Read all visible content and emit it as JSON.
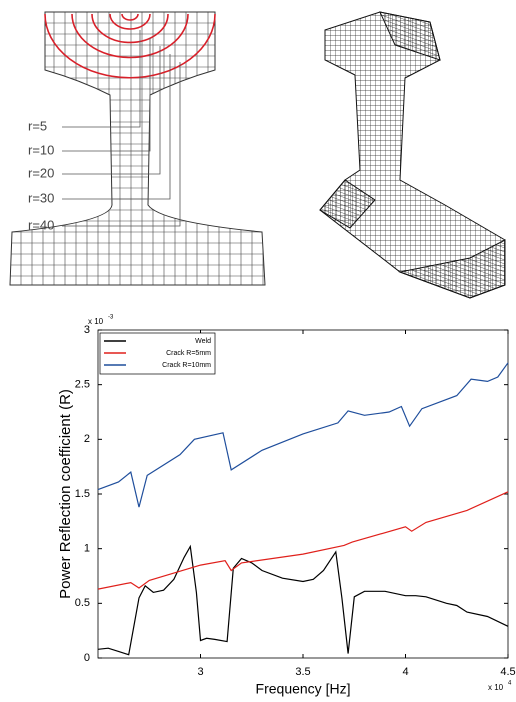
{
  "diagram": {
    "labels": [
      "r=5",
      "r=10",
      "r=20",
      "r=30",
      "r=40"
    ]
  },
  "chart_data": {
    "type": "line",
    "x_label": "Frequency [Hz]",
    "y_label": "Power Reflection coefficient (R)",
    "x_multiplier": "x 10",
    "x_exponent": "4",
    "y_multiplier": "x 10",
    "y_exponent": "-3",
    "xlim": [
      2.5,
      4.5
    ],
    "xticks": [
      3,
      3.5,
      4,
      4.5
    ],
    "ylim": [
      0,
      3
    ],
    "yticks": [
      0,
      0.5,
      1,
      1.5,
      2,
      2.5,
      3
    ],
    "legend": "top-left",
    "series": [
      {
        "name": "Weld",
        "color": "#000000",
        "x": [
          2.5,
          2.55,
          2.6,
          2.65,
          2.7,
          2.73,
          2.77,
          2.82,
          2.87,
          2.92,
          2.95,
          2.98,
          3.0,
          3.03,
          3.07,
          3.13,
          3.16,
          3.2,
          3.25,
          3.3,
          3.4,
          3.5,
          3.55,
          3.6,
          3.66,
          3.69,
          3.72,
          3.75,
          3.8,
          3.9,
          4.0,
          4.05,
          4.1,
          4.2,
          4.25,
          4.3,
          4.4,
          4.5
        ],
        "values": [
          0.08,
          0.09,
          0.06,
          0.03,
          0.55,
          0.66,
          0.6,
          0.62,
          0.72,
          0.92,
          1.02,
          0.6,
          0.16,
          0.18,
          0.17,
          0.15,
          0.82,
          0.91,
          0.87,
          0.8,
          0.73,
          0.7,
          0.72,
          0.8,
          0.97,
          0.55,
          0.04,
          0.56,
          0.61,
          0.61,
          0.57,
          0.57,
          0.56,
          0.5,
          0.48,
          0.42,
          0.38,
          0.29
        ]
      },
      {
        "name": "Crack R=5mm",
        "color": "#e0201b",
        "x": [
          2.5,
          2.66,
          2.7,
          2.75,
          3.0,
          3.12,
          3.15,
          3.2,
          3.5,
          3.7,
          3.74,
          4.0,
          4.03,
          4.1,
          4.3,
          4.5
        ],
        "values": [
          0.63,
          0.69,
          0.64,
          0.71,
          0.85,
          0.89,
          0.8,
          0.87,
          0.95,
          1.03,
          1.06,
          1.2,
          1.16,
          1.24,
          1.35,
          1.52
        ]
      },
      {
        "name": "Crack R=10mm",
        "color": "#1f4e9c",
        "x": [
          2.5,
          2.6,
          2.66,
          2.7,
          2.74,
          2.9,
          2.97,
          3.11,
          3.15,
          3.3,
          3.5,
          3.67,
          3.72,
          3.8,
          3.92,
          3.98,
          4.02,
          4.08,
          4.25,
          4.32,
          4.4,
          4.45,
          4.5
        ],
        "values": [
          1.54,
          1.61,
          1.7,
          1.38,
          1.67,
          1.86,
          2.0,
          2.06,
          1.72,
          1.9,
          2.05,
          2.15,
          2.26,
          2.22,
          2.25,
          2.3,
          2.12,
          2.28,
          2.4,
          2.55,
          2.53,
          2.57,
          2.7
        ]
      }
    ]
  }
}
